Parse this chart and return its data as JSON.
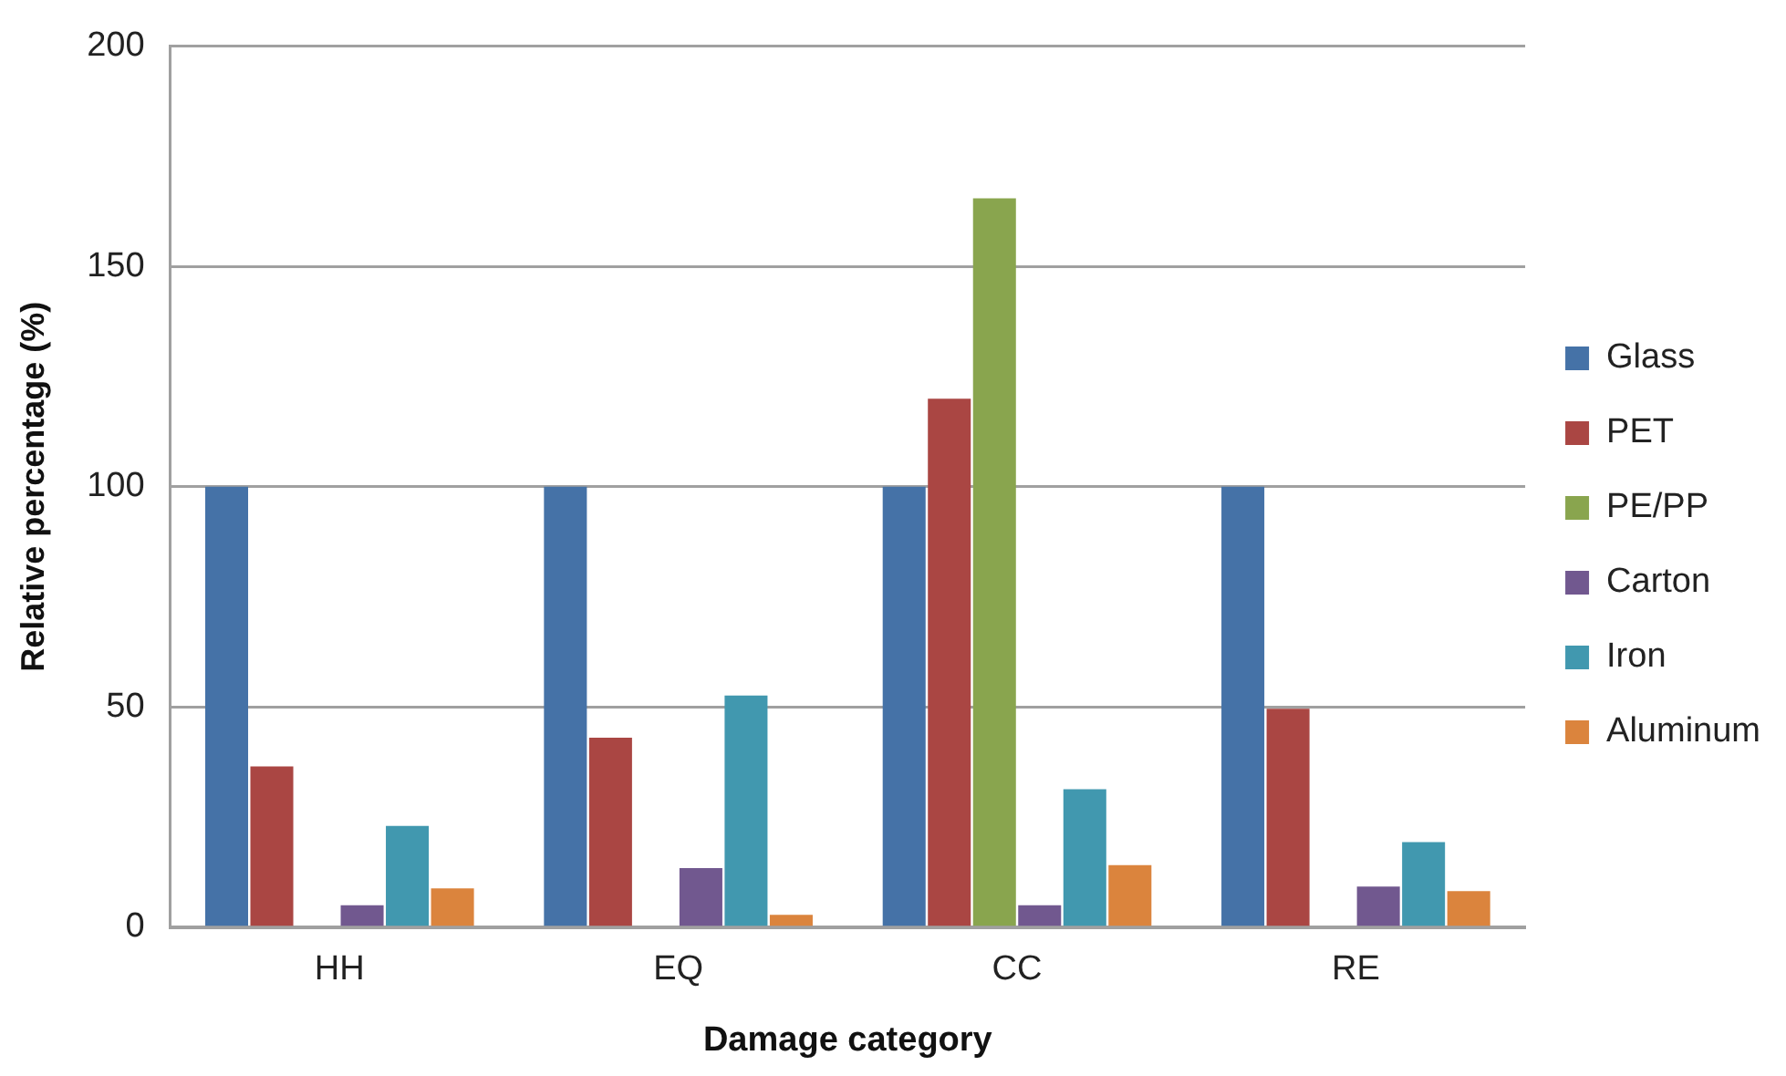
{
  "chart_data": {
    "type": "bar",
    "xlabel": "Damage category",
    "ylabel": "Relative percentage (%)",
    "categories": [
      "HH",
      "EQ",
      "CC",
      "RE"
    ],
    "series": [
      {
        "name": "Glass",
        "color": "#4572a7",
        "values": [
          100,
          100,
          100,
          100
        ]
      },
      {
        "name": "PET",
        "color": "#aa4643",
        "values": [
          36.5,
          43,
          120,
          49.6
        ]
      },
      {
        "name": "PE/PP",
        "color": "#89a54e",
        "values": [
          0,
          0,
          165.5,
          0
        ]
      },
      {
        "name": "Carton",
        "color": "#71588f",
        "values": [
          5,
          13.4,
          5,
          9.2
        ]
      },
      {
        "name": "Iron",
        "color": "#4198af",
        "values": [
          23,
          52.6,
          31.3,
          19.3
        ]
      },
      {
        "name": "Aluminum",
        "color": "#db843d",
        "values": [
          8.8,
          2.8,
          14.1,
          8.2
        ]
      }
    ],
    "ylim": [
      0,
      200
    ],
    "yticks": [
      0,
      50,
      100,
      150,
      200
    ],
    "grid": "y",
    "legend": "right"
  }
}
